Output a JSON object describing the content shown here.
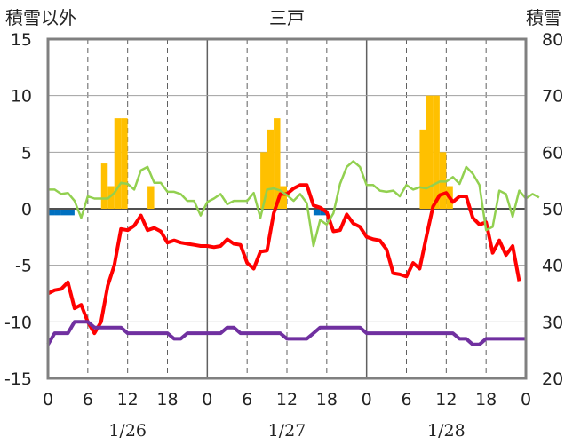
{
  "chart_data": {
    "type": "line",
    "title": "三戸",
    "y_left_label": "積雪以外",
    "y_right_label": "積雪",
    "ylim_left": [
      -15,
      15
    ],
    "ylim_right": [
      20,
      80
    ],
    "y_left_ticks": [
      "15",
      "10",
      "5",
      "0",
      "-5",
      "-10",
      "-15"
    ],
    "y_right_ticks": [
      "80",
      "70",
      "60",
      "50",
      "40",
      "30",
      "20"
    ],
    "x_ticks": [
      "0",
      "6",
      "12",
      "18",
      "0",
      "6",
      "12",
      "18",
      "0",
      "6",
      "12",
      "18",
      "0"
    ],
    "date_labels": [
      "1/26",
      "1/27",
      "1/28"
    ],
    "hours": 72,
    "colors": {
      "temperature": "#ff0000",
      "wind": "#92d050",
      "pressure": "#7030a0",
      "snowfall": "#ffc000",
      "precipitation": "#0070c0",
      "axis": "#808080",
      "grid": "#606060"
    },
    "snowfall_bars": [
      [
        8,
        4
      ],
      [
        9,
        2
      ],
      [
        10,
        8
      ],
      [
        11,
        8
      ],
      [
        15,
        2
      ],
      [
        32,
        5
      ],
      [
        33,
        7
      ],
      [
        34,
        8
      ],
      [
        35,
        2
      ],
      [
        56,
        7
      ],
      [
        57,
        10
      ],
      [
        58,
        10
      ],
      [
        59,
        5
      ],
      [
        60,
        2
      ]
    ],
    "precip_bars": [
      [
        0,
        -0.5
      ],
      [
        1,
        -0.5
      ],
      [
        2,
        -0.5
      ],
      [
        3,
        -0.5
      ],
      [
        40,
        -0.5
      ],
      [
        41,
        -0.5
      ]
    ],
    "series": [
      {
        "key": "temperature",
        "values": [
          -7.5,
          -7.2,
          -7.1,
          -6.5,
          -8.8,
          -8.5,
          -10,
          -11,
          -10,
          -6.8,
          -5,
          -1.8,
          -1.9,
          -1.5,
          -0.6,
          -1.9,
          -1.7,
          -2,
          -3,
          -2.8,
          -3,
          -3.1,
          -3.2,
          -3.3,
          -3.3,
          -3.4,
          -3.3,
          -2.7,
          -3.1,
          -3.2,
          -4.8,
          -5.3,
          -3.8,
          -3.7,
          -0.4,
          1.3,
          1.3,
          1.8,
          2.1,
          2.1,
          0.3,
          0.1,
          -0.3,
          -2,
          -1.9,
          -0.5,
          -1.3,
          -1.6,
          -2.5,
          -2.7,
          -2.8,
          -3.6,
          -5.7,
          -5.8,
          -6,
          -4.8,
          -5.3,
          -2.5,
          0.2,
          1.2,
          1.4,
          0.6,
          1.1,
          1.1,
          -0.8,
          -1.4,
          -1.2,
          -3.9,
          -2.8,
          -4.1,
          -3.3,
          -6.4
        ]
      },
      {
        "key": "wind",
        "values": [
          1.7,
          1.7,
          1.3,
          1.4,
          0.7,
          -0.8,
          1.1,
          0.9,
          0.9,
          0.9,
          1.4,
          2.3,
          2.2,
          1.7,
          3.4,
          3.7,
          2.3,
          2.3,
          1.5,
          1.5,
          1.3,
          0.7,
          0.7,
          -0.6,
          0.6,
          0.9,
          1.3,
          0.4,
          0.7,
          0.7,
          0.7,
          1.4,
          -0.8,
          1.7,
          1.8,
          1.6,
          1.2,
          0.7,
          1.3,
          0.5,
          -3.3,
          -1,
          -1.4,
          -0.4,
          2.2,
          3.7,
          4.2,
          3.7,
          2.1,
          2.1,
          1.6,
          1.5,
          1.6,
          1.1,
          2.1,
          1.7,
          1.9,
          1.8,
          2.1,
          2.4,
          2.4,
          2.8,
          2.2,
          3.7,
          3.1,
          2.1,
          -1.9,
          -1.6,
          1.6,
          1.3,
          -0.7,
          1.6,
          0.9,
          1.3,
          1
        ]
      },
      {
        "key": "pressure",
        "values": [
          -12,
          -11,
          -11,
          -11,
          -10,
          -10,
          -10,
          -10.5,
          -10.5,
          -10.5,
          -10.5,
          -10.5,
          -11,
          -11,
          -11,
          -11,
          -11,
          -11,
          -11,
          -11.5,
          -11.5,
          -11,
          -11,
          -11,
          -11,
          -11,
          -11,
          -10.5,
          -10.5,
          -11,
          -11,
          -11,
          -11,
          -11,
          -11,
          -11,
          -11.5,
          -11.5,
          -11.5,
          -11.5,
          -11,
          -10.5,
          -10.5,
          -10.5,
          -10.5,
          -10.5,
          -10.5,
          -10.5,
          -11,
          -11,
          -11,
          -11,
          -11,
          -11,
          -11,
          -11,
          -11,
          -11,
          -11,
          -11,
          -11,
          -11,
          -11.5,
          -11.5,
          -12,
          -12,
          -11.5,
          -11.5,
          -11.5,
          -11.5,
          -11.5,
          -11.5,
          -11.5
        ]
      }
    ]
  }
}
